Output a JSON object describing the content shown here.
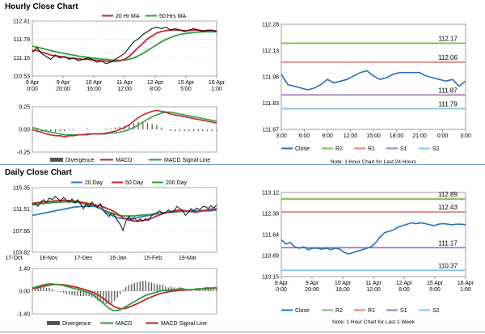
{
  "sections": [
    {
      "title": "Hourly Close Chart"
    },
    {
      "title": "Daily Close Chart"
    }
  ],
  "colors": {
    "price": "#111111",
    "ma_short": "#c0262d",
    "ma_long": "#2e9e3f",
    "divergence": "#555555",
    "close_line": "#2a6fb4",
    "r2": "#77c15c",
    "r1": "#e08080",
    "s1": "#9b7fb5",
    "s2": "#7fc8e6",
    "blue_ma": "#3a78b8"
  },
  "chart_data": [
    {
      "id": "hourly_price",
      "type": "line",
      "legend": [
        "20 Hr MA",
        "50 Hrs MA"
      ],
      "y_ticks": [
        "112.41",
        "111.78",
        "111.15",
        "110.53"
      ],
      "ylim": [
        110.53,
        112.41
      ],
      "x_ticks": [
        [
          "9 Apr",
          "0:00"
        ],
        [
          "9 Apr",
          "20:00"
        ],
        [
          "10 Apr",
          "16:00"
        ],
        [
          "11 Apr",
          "12:00"
        ],
        [
          "12 Apr",
          "8:00"
        ],
        [
          "15 Apr",
          "5:00"
        ],
        [
          "16 Apr",
          "1:00"
        ]
      ],
      "series": [
        {
          "role": "price",
          "values": [
            111.35,
            111.5,
            111.3,
            111.2,
            111.1,
            111.25,
            111.15,
            111.2,
            111.1,
            111.15,
            111.05,
            111.1,
            111.15,
            111.1,
            111.0,
            111.05,
            110.95,
            111.0,
            111.1,
            111.2,
            111.3,
            111.5,
            111.7,
            111.8,
            111.95,
            112.05,
            112.15,
            112.2,
            112.15,
            112.2,
            112.1,
            112.15,
            112.1,
            112.05,
            112.1,
            112.15,
            112.1,
            112.05,
            112.1,
            112.1,
            112.05
          ]
        },
        {
          "role": "ma_short",
          "values": [
            111.4,
            111.4,
            111.35,
            111.3,
            111.25,
            111.22,
            111.2,
            111.18,
            111.15,
            111.13,
            111.12,
            111.1,
            111.1,
            111.08,
            111.07,
            111.05,
            111.04,
            111.03,
            111.03,
            111.05,
            111.1,
            111.2,
            111.35,
            111.5,
            111.65,
            111.8,
            111.9,
            112.0,
            112.05,
            112.08,
            112.1,
            112.1,
            112.1,
            112.08,
            112.08,
            112.1,
            112.1,
            112.08,
            112.08,
            112.08,
            112.07
          ]
        },
        {
          "role": "ma_long",
          "values": [
            111.55,
            111.52,
            111.48,
            111.44,
            111.4,
            111.36,
            111.33,
            111.3,
            111.27,
            111.24,
            111.21,
            111.19,
            111.17,
            111.15,
            111.13,
            111.11,
            111.1,
            111.08,
            111.07,
            111.07,
            111.08,
            111.1,
            111.15,
            111.22,
            111.3,
            111.4,
            111.5,
            111.6,
            111.7,
            111.78,
            111.85,
            111.9,
            111.95,
            111.98,
            112.0,
            112.02,
            112.03,
            112.04,
            112.04,
            112.04,
            112.04
          ]
        }
      ]
    },
    {
      "id": "hourly_macd",
      "type": "line",
      "y_ticks": [
        "0.25",
        "0.00",
        "-0.25"
      ],
      "ylim": [
        -0.25,
        0.25
      ],
      "legend": [
        "Divergence",
        "MACD",
        "MACD Signal Line"
      ],
      "series": [
        {
          "role": "macd",
          "values": [
            0.0,
            -0.02,
            -0.03,
            -0.05,
            -0.06,
            -0.07,
            -0.07,
            -0.08,
            -0.07,
            -0.07,
            -0.06,
            -0.06,
            -0.05,
            -0.05,
            -0.05,
            -0.05,
            -0.04,
            -0.03,
            -0.02,
            0.0,
            0.02,
            0.05,
            0.09,
            0.13,
            0.16,
            0.18,
            0.2,
            0.21,
            0.2,
            0.19,
            0.17,
            0.16,
            0.15,
            0.14,
            0.13,
            0.12,
            0.11,
            0.1,
            0.09,
            0.08,
            0.07
          ]
        },
        {
          "role": "signal",
          "values": [
            0.02,
            0.01,
            -0.01,
            -0.02,
            -0.03,
            -0.04,
            -0.05,
            -0.06,
            -0.06,
            -0.06,
            -0.06,
            -0.06,
            -0.06,
            -0.05,
            -0.05,
            -0.05,
            -0.05,
            -0.04,
            -0.04,
            -0.03,
            -0.02,
            0.0,
            0.02,
            0.05,
            0.08,
            0.11,
            0.14,
            0.16,
            0.18,
            0.19,
            0.19,
            0.18,
            0.17,
            0.16,
            0.15,
            0.14,
            0.13,
            0.12,
            0.11,
            0.1,
            0.09
          ]
        }
      ]
    },
    {
      "id": "hourly_close",
      "type": "line",
      "y_ticks": [
        "112.28",
        "112.13",
        "111.98",
        "111.83",
        "111.67"
      ],
      "ylim": [
        111.67,
        112.28
      ],
      "x_ticks": [
        "3:00",
        "6:00",
        "9:00",
        "12:00",
        "15:00",
        "18:00",
        "21:00",
        "0:00",
        "3:00"
      ],
      "levels": [
        {
          "role": "r2",
          "value": 112.17,
          "label": "112.17"
        },
        {
          "role": "r1",
          "value": 112.06,
          "label": "112.06"
        },
        {
          "role": "s1",
          "value": 111.87,
          "label": "111.87"
        },
        {
          "role": "s2",
          "value": 111.79,
          "label": "111.79"
        }
      ],
      "close": [
        111.99,
        111.93,
        111.92,
        111.91,
        111.9,
        111.91,
        111.93,
        111.96,
        111.94,
        111.95,
        111.96,
        111.98,
        112.0,
        112.01,
        111.98,
        111.96,
        111.97,
        111.99,
        112.0,
        112.0,
        112.0,
        112.0,
        111.98,
        111.97,
        111.96,
        111.95,
        111.96,
        111.92,
        111.95
      ],
      "legend": [
        "Close",
        "R2",
        "R1",
        "S1",
        "S2"
      ],
      "note": "Note: 1 Hour Chart for Last 24 Hours"
    },
    {
      "id": "daily_price",
      "type": "line",
      "legend": [
        "20 Day",
        "50 Day",
        "200 Day"
      ],
      "y_ticks": [
        "115.35",
        "111.51",
        "107.66",
        "103.82"
      ],
      "ylim": [
        103.82,
        115.35
      ],
      "x_ticks": [
        "17-Oct",
        "16-Nov",
        "17-Dec",
        "16-Jan",
        "15-Feb",
        "19-Mar"
      ],
      "series": [
        {
          "role": "price",
          "values": [
            112.3,
            112.5,
            112.0,
            112.8,
            113.2,
            112.7,
            113.5,
            113.2,
            113.8,
            113.4,
            112.9,
            113.6,
            113.1,
            112.8,
            113.3,
            112.6,
            113.2,
            112.5,
            111.6,
            112.4,
            111.9,
            112.8,
            112.2,
            111.8,
            112.5,
            111.3,
            110.7,
            110.2,
            110.9,
            110.3,
            109.5,
            108.8,
            107.7,
            109.4,
            110.2,
            109.5,
            110.0,
            109.3,
            109.8,
            109.4,
            109.8,
            109.5,
            110.3,
            110.6,
            110.9,
            111.2,
            110.7,
            110.9,
            111.4,
            110.9,
            111.2,
            112.0,
            111.6,
            111.3,
            110.4,
            110.9,
            111.6,
            111.2,
            111.7,
            111.4,
            111.9,
            112.0,
            111.6,
            112.1,
            111.7,
            112.3
          ]
        },
        {
          "role": "ma_short",
          "values": [
            112.6,
            112.6,
            112.7,
            112.7,
            112.8,
            112.8,
            112.9,
            112.9,
            113.0,
            113.0,
            113.1,
            113.1,
            113.1,
            113.0,
            113.0,
            112.9,
            112.9,
            112.8,
            112.7,
            112.6,
            112.5,
            112.4,
            112.3,
            112.2,
            112.1,
            111.9,
            111.7,
            111.5,
            111.3,
            111.0,
            110.7,
            110.3,
            110.0,
            109.8,
            109.6,
            109.5,
            109.4,
            109.4,
            109.4,
            109.5,
            109.6,
            109.7,
            109.9,
            110.1,
            110.3,
            110.5,
            110.7,
            110.9,
            111.0,
            111.1,
            111.2,
            111.3,
            111.3,
            111.3,
            111.2,
            111.1,
            111.1,
            111.0,
            111.0,
            111.1,
            111.2,
            111.3,
            111.4,
            111.5,
            111.5,
            111.6
          ]
        },
        {
          "role": "ma_long",
          "values": [
            112.3,
            112.4,
            112.4,
            112.5,
            112.5,
            112.6,
            112.6,
            112.7,
            112.7,
            112.7,
            112.8,
            112.8,
            112.8,
            112.8,
            112.8,
            112.7,
            112.7,
            112.6,
            112.5,
            112.4,
            112.3,
            112.2,
            112.0,
            111.8,
            111.6,
            111.4,
            111.2,
            111.0,
            110.8,
            110.6,
            110.5,
            110.4,
            110.3,
            110.3,
            110.3,
            110.3,
            110.3,
            110.4,
            110.4,
            110.5,
            110.5,
            110.6,
            110.6,
            110.7,
            110.7,
            110.8,
            110.8,
            110.9,
            110.9,
            111.0,
            111.0,
            111.0,
            111.1,
            111.1,
            111.1,
            111.1,
            111.1,
            111.1,
            111.1,
            111.1,
            111.2,
            111.2,
            111.2,
            111.2,
            111.3,
            111.3
          ]
        },
        {
          "role": "blue_ma",
          "values": [
            110.4,
            110.5,
            110.6,
            110.7,
            110.8,
            110.9,
            111.0,
            111.1,
            111.2,
            111.3,
            111.4,
            111.5,
            111.6,
            111.7,
            111.8,
            111.9,
            111.9,
            112.0,
            112.0,
            112.0,
            112.0,
            112.0,
            112.0,
            111.9,
            111.7,
            111.4,
            111.0,
            110.7,
            110.4,
            110.2,
            110.0,
            109.9,
            109.8,
            109.8,
            109.8,
            109.9,
            109.9,
            110.0,
            110.1,
            110.2,
            110.3,
            110.4,
            110.5,
            110.6,
            110.7,
            110.8,
            110.9,
            110.9,
            111.0,
            111.0,
            111.1,
            111.1,
            111.1,
            111.2,
            111.2,
            111.2,
            111.2,
            111.2,
            111.2,
            111.2,
            111.3,
            111.3,
            111.3,
            111.3,
            111.3,
            111.4
          ]
        }
      ]
    },
    {
      "id": "daily_macd",
      "type": "line",
      "y_ticks": [
        "1.40",
        "0.00",
        "-1.40"
      ],
      "ylim": [
        -1.4,
        1.4
      ],
      "legend": [
        "Divergence",
        "MACD",
        "MACD Signal Line"
      ],
      "series": [
        {
          "role": "macd",
          "values": [
            0.2,
            0.25,
            0.3,
            0.35,
            0.4,
            0.42,
            0.45,
            0.45,
            0.42,
            0.4,
            0.38,
            0.35,
            0.3,
            0.25,
            0.2,
            0.15,
            0.1,
            0.05,
            0.0,
            -0.05,
            -0.1,
            -0.2,
            -0.3,
            -0.45,
            -0.6,
            -0.75,
            -0.9,
            -1.05,
            -1.15,
            -1.2,
            -1.2,
            -1.15,
            -1.05,
            -0.95,
            -0.85,
            -0.75,
            -0.65,
            -0.55,
            -0.45,
            -0.35,
            -0.25,
            -0.2,
            -0.15,
            -0.1,
            -0.05,
            0.0,
            0.05,
            0.05,
            0.05,
            0.1,
            0.1,
            0.1,
            0.15,
            0.15,
            0.1,
            0.1,
            0.1,
            0.1,
            0.15,
            0.15,
            0.15,
            0.2,
            0.2,
            0.2,
            0.2,
            0.25
          ]
        },
        {
          "role": "signal",
          "values": [
            0.15,
            0.18,
            0.22,
            0.26,
            0.3,
            0.34,
            0.37,
            0.4,
            0.41,
            0.41,
            0.4,
            0.39,
            0.37,
            0.34,
            0.3,
            0.26,
            0.22,
            0.17,
            0.12,
            0.07,
            0.02,
            -0.05,
            -0.13,
            -0.22,
            -0.33,
            -0.45,
            -0.58,
            -0.72,
            -0.85,
            -0.96,
            -1.04,
            -1.08,
            -1.08,
            -1.05,
            -1.0,
            -0.93,
            -0.85,
            -0.77,
            -0.69,
            -0.6,
            -0.51,
            -0.43,
            -0.36,
            -0.29,
            -0.22,
            -0.16,
            -0.11,
            -0.07,
            -0.04,
            -0.01,
            0.01,
            0.03,
            0.05,
            0.07,
            0.08,
            0.09,
            0.09,
            0.1,
            0.11,
            0.12,
            0.13,
            0.14,
            0.15,
            0.16,
            0.17,
            0.18
          ]
        }
      ]
    },
    {
      "id": "daily_close",
      "type": "line",
      "y_ticks": [
        "113.12",
        "112.38",
        "111.64",
        "110.89",
        "110.15"
      ],
      "ylim": [
        110.15,
        113.12
      ],
      "x_ticks": [
        [
          "9 Apr",
          "0:00"
        ],
        [
          "9 Apr",
          "20:00"
        ],
        [
          "10 Apr",
          "16:00"
        ],
        [
          "11 Apr",
          "12:00"
        ],
        [
          "12 Apr",
          "8:00"
        ],
        [
          "15 Apr",
          "5:00"
        ],
        [
          "16 Apr",
          "1:00"
        ]
      ],
      "levels": [
        {
          "role": "r2",
          "value": 112.89,
          "label": "112.89"
        },
        {
          "role": "r1",
          "value": 112.43,
          "label": "112.43"
        },
        {
          "role": "s1",
          "value": 111.17,
          "label": "111.17"
        },
        {
          "role": "s2",
          "value": 110.37,
          "label": "110.37"
        }
      ],
      "close": [
        111.45,
        111.3,
        111.35,
        111.2,
        111.15,
        111.2,
        111.1,
        111.15,
        111.15,
        111.12,
        111.15,
        111.1,
        111.15,
        111.12,
        111.0,
        110.95,
        111.0,
        111.05,
        111.1,
        111.15,
        111.2,
        111.35,
        111.55,
        111.7,
        111.75,
        111.8,
        111.9,
        111.95,
        112.0,
        112.05,
        112.02,
        112.05,
        112.02,
        111.98,
        111.95,
        112.0,
        112.02,
        112.0,
        111.98,
        112.0,
        112.0,
        111.98
      ],
      "legend": [
        "Close",
        "R2",
        "R1",
        "S1",
        "S2"
      ],
      "note": "Note: 1 Hour Chart for Last 1 Week"
    }
  ]
}
